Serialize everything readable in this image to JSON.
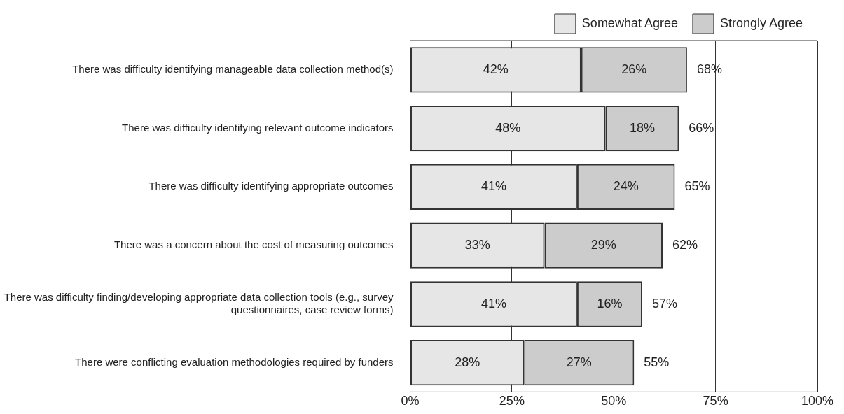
{
  "chart_data": {
    "type": "bar",
    "orientation": "horizontal",
    "stacked": true,
    "categories": [
      "There was difficulty identifying manageable data collection method(s)",
      "There was difficulty identifying relevant outcome indicators",
      "There was difficulty identifying appropriate outcomes",
      "There was a concern about the cost of measuring outcomes",
      "There was difficulty finding/developing appropriate data collection tools (e.g., survey questionnaires, case review forms)",
      "There were conflicting evaluation methodologies required by funders"
    ],
    "series": [
      {
        "name": "Somewhat Agree",
        "color": "#e6e6e6",
        "values": [
          42,
          48,
          41,
          33,
          41,
          28
        ],
        "value_labels": [
          "42%",
          "48%",
          "41%",
          "33%",
          "41%",
          "28%"
        ]
      },
      {
        "name": "Strongly Agree",
        "color": "#cccccc",
        "values": [
          26,
          18,
          24,
          29,
          16,
          27
        ],
        "value_labels": [
          "26%",
          "18%",
          "24%",
          "29%",
          "16%",
          "27%"
        ]
      }
    ],
    "totals": [
      "68%",
      "66%",
      "65%",
      "62%",
      "57%",
      "55%"
    ],
    "xlim": [
      0,
      100
    ],
    "xticks": [
      {
        "value": 0,
        "label": "0%"
      },
      {
        "value": 25,
        "label": "25%"
      },
      {
        "value": 50,
        "label": "50%"
      },
      {
        "value": 75,
        "label": "75%"
      },
      {
        "value": 100,
        "label": "100%"
      }
    ],
    "grid": "x",
    "legend": "top"
  }
}
